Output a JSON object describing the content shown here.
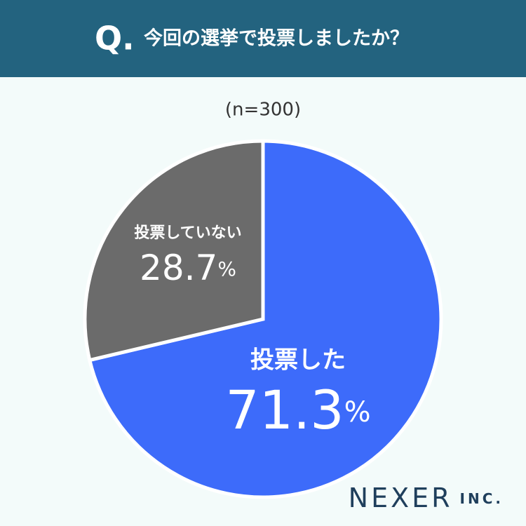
{
  "chart_data": {
    "type": "pie",
    "question_mark": "Q.",
    "title": "今回の選挙で投票しましたか？",
    "subtitle": "(n=300)",
    "categories": [
      "投票した",
      "投票していない"
    ],
    "values": [
      71.3,
      28.7
    ],
    "unit": "%",
    "colors": [
      "#3d6bfa",
      "#6b6b6b"
    ],
    "brand": "NEXER",
    "brand_suffix": "INC."
  }
}
